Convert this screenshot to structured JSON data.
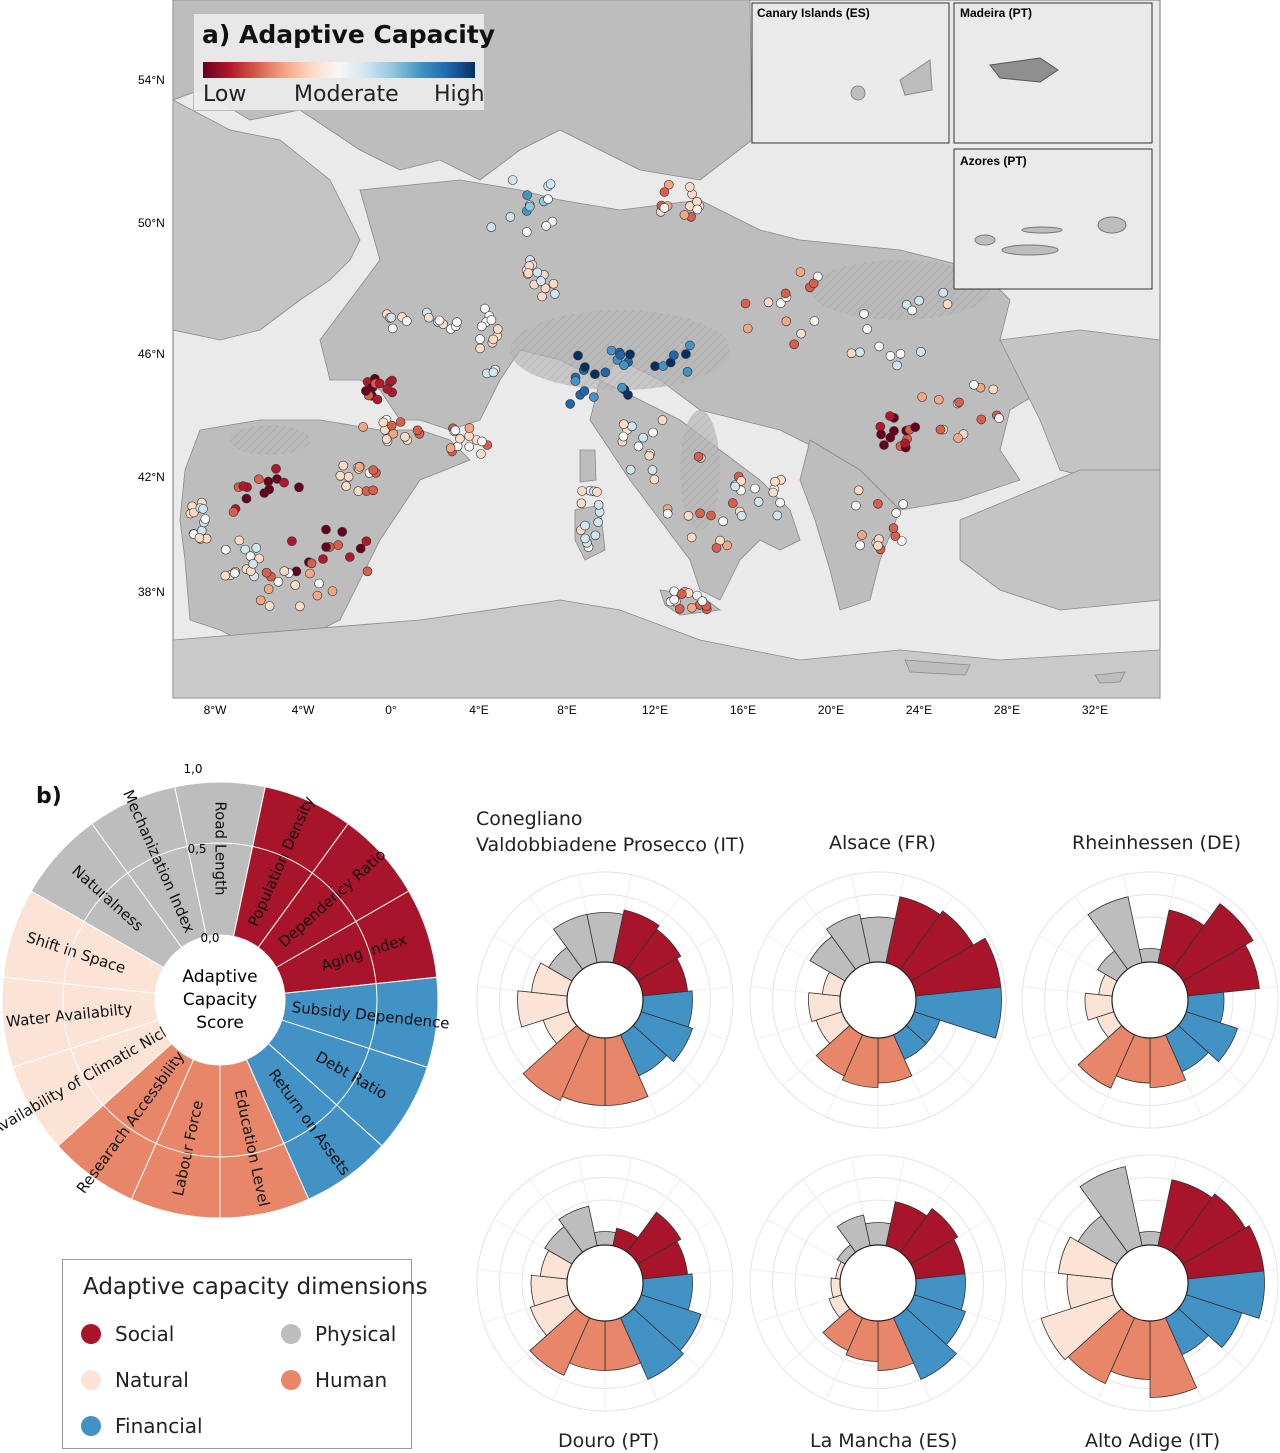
{
  "map": {
    "title": "a) Adaptive Capacity",
    "colorbar_low": "Low",
    "colorbar_mid": "Moderate",
    "colorbar_high": "High",
    "colorbar_colors": [
      "#67001f",
      "#b2182b",
      "#d6604d",
      "#f4a582",
      "#fddbc7",
      "#f7f7f7",
      "#d1e5f0",
      "#92c5de",
      "#4393c3",
      "#2166ac",
      "#053061"
    ],
    "lat_labels": [
      "54°N",
      "50°N",
      "46°N",
      "42°N",
      "38°N"
    ],
    "lon_labels": [
      "8°W",
      "4°W",
      "0°",
      "4°E",
      "8°E",
      "12°E",
      "16°E",
      "20°E",
      "24°E",
      "28°E",
      "32°E"
    ],
    "insets": [
      "Canary Islands (ES)",
      "Madeira (PT)",
      "Azores (PT)"
    ]
  },
  "panel_b": {
    "label": "b)",
    "center_text": [
      "Adaptive",
      "Capacity",
      "Score"
    ],
    "scale_labels": [
      "1,0",
      "0,5",
      "0,0"
    ],
    "indicators": [
      {
        "name": "Road Length",
        "dim": "physical"
      },
      {
        "name": "Population Density",
        "dim": "social"
      },
      {
        "name": "Dependency Ratio",
        "dim": "social"
      },
      {
        "name": "Aging Index",
        "dim": "social"
      },
      {
        "name": "Subsidy Dependence",
        "dim": "financial"
      },
      {
        "name": "Debt Ratio",
        "dim": "financial"
      },
      {
        "name": "Return on Assets",
        "dim": "financial"
      },
      {
        "name": "Education Level",
        "dim": "human"
      },
      {
        "name": "Labour Force",
        "dim": "human"
      },
      {
        "name": "Researach Accessbility",
        "dim": "human"
      },
      {
        "name": "Availability of Climatic Niches",
        "dim": "natural"
      },
      {
        "name": "Water Availabilty",
        "dim": "natural"
      },
      {
        "name": "Shift in Space",
        "dim": "natural"
      },
      {
        "name": "Naturalness",
        "dim": "physical"
      },
      {
        "name": "Mechanization Index",
        "dim": "physical"
      }
    ],
    "dimension_colors": {
      "social": "#a8142a",
      "financial": "#4292c6",
      "human": "#e8866a",
      "natural": "#fbe3d6",
      "physical": "#bdbdbd"
    },
    "legend": {
      "title": "Adaptive capacity dimensions",
      "items": [
        {
          "label": "Social",
          "dim": "social"
        },
        {
          "label": "Physical",
          "dim": "physical"
        },
        {
          "label": "Natural",
          "dim": "natural"
        },
        {
          "label": "Human",
          "dim": "human"
        },
        {
          "label": "Financial",
          "dim": "financial"
        }
      ]
    },
    "sites": [
      {
        "title": [
          "Conegliano",
          "Valdobbiadene Prosecco (IT)"
        ],
        "values": [
          0.55,
          0.6,
          0.55,
          0.5,
          0.55,
          0.6,
          0.5,
          0.75,
          0.75,
          0.8,
          0.3,
          0.55,
          0.4,
          0.3,
          0.55
        ]
      },
      {
        "title": [
          "Alsace (FR)"
        ],
        "values": [
          0.5,
          0.75,
          0.8,
          0.95,
          0.95,
          0.3,
          0.3,
          0.5,
          0.55,
          0.5,
          0.3,
          0.35,
          0.2,
          0.45,
          0.55
        ]
      },
      {
        "title": [
          "Rheinhessen (DE)"
        ],
        "values": [
          0.15,
          0.6,
          0.9,
          0.8,
          0.4,
          0.6,
          0.45,
          0.55,
          0.5,
          0.65,
          0.2,
          0.3,
          0.15,
          0.25,
          0.75
        ]
      },
      {
        "title": [
          "Douro (PT)"
        ],
        "values": [
          0.15,
          0.2,
          0.55,
          0.5,
          0.55,
          0.7,
          0.75,
          0.55,
          0.55,
          0.7,
          0.45,
          0.4,
          0.3,
          0.35,
          0.45
        ]
      },
      {
        "title": [
          "La Mancha (ES)"
        ],
        "values": [
          0.25,
          0.5,
          0.6,
          0.55,
          0.55,
          0.6,
          0.75,
          0.55,
          0.45,
          0.4,
          0.15,
          0.1,
          0.05,
          0.1,
          0.35
        ]
      },
      {
        "title": [
          "Alto Adige (IT)"
        ],
        "values": [
          0.15,
          0.75,
          0.8,
          0.85,
          0.85,
          0.65,
          0.45,
          0.85,
          0.65,
          0.8,
          0.85,
          0.5,
          0.6,
          0.5,
          0.9
        ]
      }
    ]
  }
}
